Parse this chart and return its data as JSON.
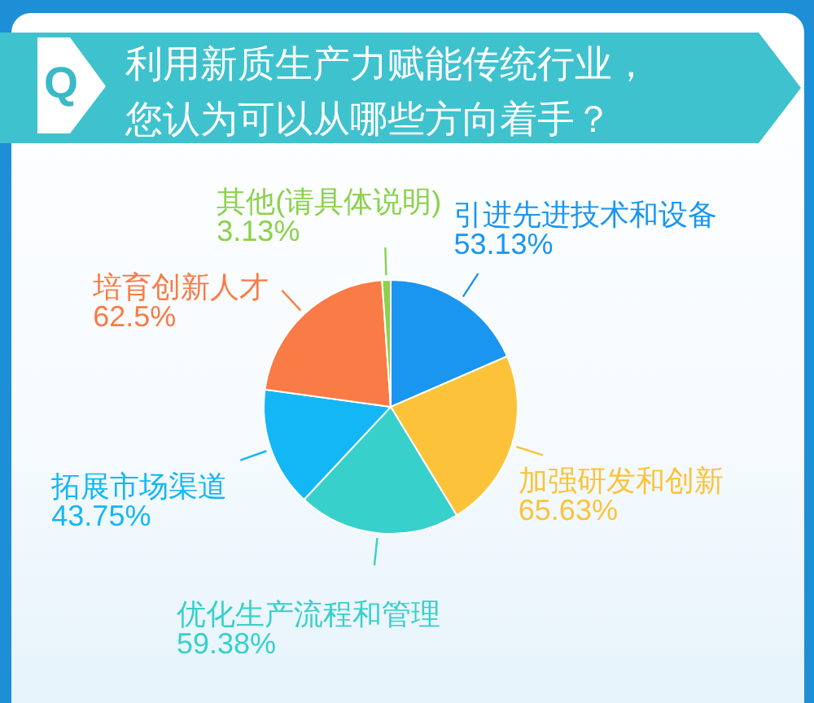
{
  "chart_data": {
    "type": "pie",
    "title": "利用新质生产力赋能传统行业，您认为可以从哪些方向着手？",
    "categories": [
      "引进先进技术和设备",
      "加强研发和创新",
      "优化生产流程和管理",
      "拓展市场渠道",
      "培育创新人才",
      "其他(请具体说明)"
    ],
    "values": [
      53.13,
      65.63,
      59.38,
      43.75,
      62.5,
      3.13
    ],
    "value_labels": [
      "53.13%",
      "65.63%",
      "59.38%",
      "43.75%",
      "62.5%",
      "3.13%"
    ],
    "colors": [
      "#1a96f0",
      "#fcc33a",
      "#38d0cb",
      "#14b7f5",
      "#f97b46",
      "#8bd14b"
    ],
    "annotations": [
      "Q"
    ]
  }
}
